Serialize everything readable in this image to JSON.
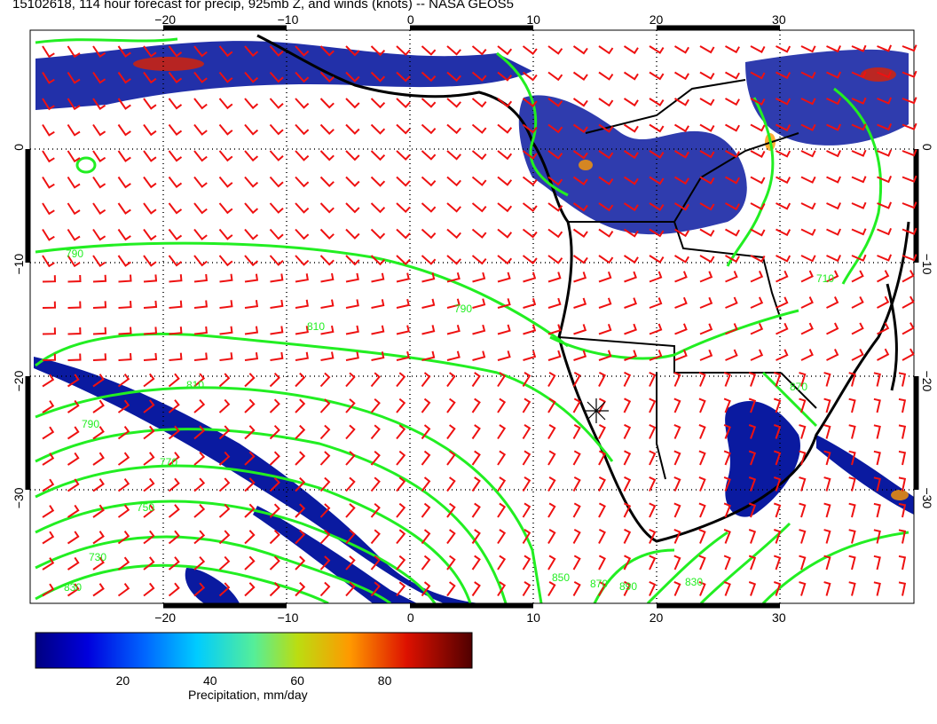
{
  "title": "15102618, 114 hour forecast for precip, 925mb Z, and winds (knots) -- NASA GEOS5",
  "map": {
    "lon_range": [
      -31,
      41
    ],
    "lat_range": [
      -39,
      10
    ],
    "lon_ticks": [
      -20,
      -10,
      0,
      10,
      20,
      30
    ],
    "lat_ticks": [
      0,
      -10,
      -20,
      -30
    ],
    "lon_tick_labels": [
      "−20",
      "−10",
      "0",
      "10",
      "20",
      "30"
    ],
    "lat_tick_labels": [
      "0",
      "−10",
      "−20",
      "−30"
    ],
    "contour_color": "#22ee22",
    "barb_color": "#ee1111",
    "coast_color": "#000000",
    "contour_labels": [
      "790",
      "790",
      "810",
      "810",
      "790",
      "770",
      "750",
      "730",
      "830",
      "850",
      "870",
      "890",
      "830",
      "870",
      "710"
    ]
  },
  "colorbar": {
    "label": "Precipitation, mm/day",
    "ticks": [
      "20",
      "40",
      "60",
      "80"
    ],
    "tick_values": [
      20,
      40,
      60,
      80
    ],
    "range": [
      0,
      100
    ],
    "colors": [
      "#000080",
      "#0000cc",
      "#0044ff",
      "#0099ff",
      "#00dddd",
      "#44ee99",
      "#aadd22",
      "#eecc00",
      "#ff8800",
      "#ee2200",
      "#aa0000",
      "#600000"
    ]
  }
}
